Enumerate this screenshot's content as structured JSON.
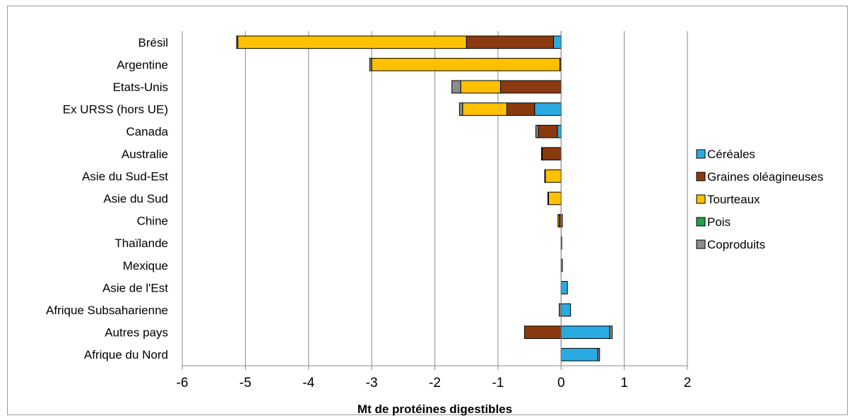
{
  "chart_data": {
    "type": "bar",
    "orientation": "horizontal",
    "stacked": true,
    "title": "",
    "xlabel": "Mt de protéines digestibles",
    "ylabel": "",
    "xlim": [
      -6,
      2
    ],
    "xticks": [
      -6,
      -5,
      -4,
      -3,
      -2,
      -1,
      0,
      1,
      2
    ],
    "grid": "vertical",
    "legend_position": "right",
    "categories": [
      "Brésil",
      "Argentine",
      "Etats-Unis",
      "Ex URSS (hors UE)",
      "Canada",
      "Australie",
      "Asie du Sud-Est",
      "Asie du Sud",
      "Chine",
      "Thaïlande",
      "Mexique",
      "Asie de l'Est",
      "Afrique Subsaharienne",
      "Autres pays",
      "Afrique du Nord"
    ],
    "series": [
      {
        "name": "Céréales",
        "color": "#29abe2",
        "values": [
          -0.12,
          0,
          0,
          -0.42,
          -0.06,
          0,
          0,
          0,
          0,
          0,
          0,
          0.1,
          0.15,
          0.77,
          0.58
        ]
      },
      {
        "name": "Graines oléagineuses",
        "color": "#8b3a0f",
        "values": [
          -1.38,
          -0.02,
          -0.96,
          -0.44,
          -0.3,
          -0.3,
          0,
          0,
          -0.03,
          0,
          0,
          0,
          0,
          -0.58,
          0
        ]
      },
      {
        "name": "Tourteaux",
        "color": "#ffc000",
        "values": [
          -3.62,
          -2.98,
          -0.63,
          -0.7,
          0,
          0,
          -0.25,
          -0.2,
          -0.02,
          0,
          0,
          0,
          0,
          0,
          0
        ]
      },
      {
        "name": "Pois",
        "color": "#21a04a",
        "values": [
          0,
          0,
          0,
          0,
          0,
          0,
          0,
          0,
          0,
          0,
          0,
          0,
          0,
          0,
          0
        ]
      },
      {
        "name": "Coproduits",
        "color": "#8c8c8c",
        "values": [
          -0.02,
          -0.03,
          -0.14,
          -0.05,
          -0.04,
          -0.01,
          -0.01,
          -0.01,
          0.02,
          0.01,
          0.02,
          0,
          -0.03,
          0.04,
          0.03
        ]
      }
    ]
  }
}
